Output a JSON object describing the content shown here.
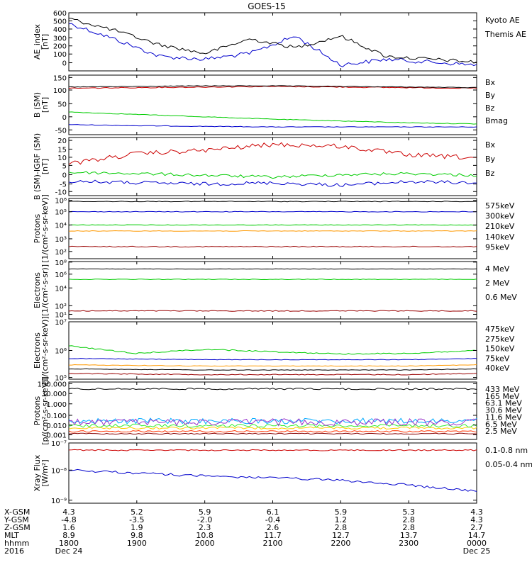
{
  "title": "GOES-15",
  "colors": {
    "black": "#000000",
    "blue": "#0000cc",
    "green": "#00dd00",
    "red": "#cc0000",
    "darkred": "#990000",
    "orange": "#ff9900",
    "yellow": "#ffcc00",
    "lightgreen": "#33ee33",
    "cyan": "#00aaff",
    "purple": "#9933cc",
    "maroon": "#880000"
  },
  "panels": [
    {
      "id": "ae",
      "ylabel": [
        "AE_index",
        "[nT]"
      ],
      "ticks": [
        "600",
        "500",
        "400",
        "300",
        "200",
        "100",
        "0"
      ],
      "legend": [
        {
          "text": "Kyoto AE",
          "color": "#0000cc"
        },
        {
          "text": "Themis AE",
          "color": "#000000"
        }
      ]
    },
    {
      "id": "bsm",
      "ylabel": [
        "B (SM)",
        "[nT]"
      ],
      "ticks": [
        "150",
        "100",
        "50",
        "0",
        "-50"
      ],
      "legend": [
        {
          "text": "Bx",
          "color": "#0000cc"
        },
        {
          "text": "By",
          "color": "#00cc00"
        },
        {
          "text": "Bz",
          "color": "#cc0000"
        },
        {
          "text": "Bmag",
          "color": "#000000"
        }
      ]
    },
    {
      "id": "bigrf",
      "ylabel": [
        "B (SM)-IGRF (SM)",
        "[nT]"
      ],
      "ticks": [
        "20",
        "15",
        "10",
        "5",
        "0",
        "-5",
        "-10"
      ],
      "legend": [
        {
          "text": "Bx",
          "color": "#0000cc"
        },
        {
          "text": "By",
          "color": "#00cc00"
        },
        {
          "text": "Bz",
          "color": "#cc0000"
        }
      ]
    },
    {
      "id": "protons1",
      "ylabel": [
        "Protons",
        "[1/(cm²-s-sr-keV)]"
      ],
      "ticks": [
        "10⁶",
        "10⁵",
        "10⁴",
        "10³",
        "10²"
      ],
      "legend": [
        {
          "text": "575keV",
          "color": "#990000"
        },
        {
          "text": "300keV",
          "color": "#ff9900"
        },
        {
          "text": "210keV",
          "color": "#00cc00"
        },
        {
          "text": "140keV",
          "color": "#0000cc"
        },
        {
          "text": "95keV",
          "color": "#000000"
        }
      ]
    },
    {
      "id": "electrons1",
      "ylabel": [
        "Electrons",
        "[1/(cm²-s-sr)]"
      ],
      "ticks": [
        "10⁸",
        "10⁶",
        "10⁴",
        "10²",
        "10¹"
      ],
      "legend": [
        {
          "text": "4 MeV",
          "color": "#990000"
        },
        {
          "text": "2 MeV",
          "color": "#00cc00"
        },
        {
          "text": "0.6 MeV",
          "color": "#000000"
        }
      ]
    },
    {
      "id": "electrons2",
      "ylabel": [
        "Electrons",
        "[1/(cm²-s-sr-keV)]"
      ],
      "ticks": [
        "10⁷",
        "10⁶",
        "10⁵"
      ],
      "legend": [
        {
          "text": "475keV",
          "color": "#990000"
        },
        {
          "text": "275keV",
          "color": "#ff9900"
        },
        {
          "text": "150keV",
          "color": "#00cc00"
        },
        {
          "text": "75keV",
          "color": "#0000cc"
        },
        {
          "text": "40keV",
          "color": "#000000"
        }
      ]
    },
    {
      "id": "protons2",
      "ylabel": [
        "Protons",
        "[p/(cm²-s-sr-keV)]"
      ],
      "ticks": [
        "100.000",
        "10.000",
        "1.000",
        "0.100",
        "0.010",
        "0.001"
      ],
      "legend": [
        {
          "text": "433 MeV",
          "color": "#880000"
        },
        {
          "text": "165 MeV",
          "color": "#ff3300"
        },
        {
          "text": "63.1 MeV",
          "color": "#ffcc00"
        },
        {
          "text": "30.6 MeV",
          "color": "#33ee33"
        },
        {
          "text": "11.6 MeV",
          "color": "#00aaff"
        },
        {
          "text": "6.5 MeV",
          "color": "#9933cc"
        },
        {
          "text": "2.5 MeV",
          "color": "#000000"
        }
      ]
    },
    {
      "id": "xray",
      "ylabel": [
        "Xray Flux",
        "[W/m²]"
      ],
      "ticks": [
        "10⁻⁷",
        "10⁻⁸",
        "10⁻⁹"
      ],
      "legend": [
        {
          "text": "0.1-0.8 nm",
          "color": "#cc0000"
        },
        {
          "text": "0.05-0.4 nm",
          "color": "#0000cc"
        }
      ]
    }
  ],
  "footer": {
    "labels": [
      "X-GSM",
      "Y-GSM",
      "Z-GSM",
      "MLT",
      "hhmm",
      "2016"
    ],
    "columns": [
      [
        "4.3",
        "-4.8",
        "1.6",
        "8.9",
        "1800",
        "Dec 24"
      ],
      [
        "5.2",
        "-3.5",
        "1.9",
        "9.8",
        "1900",
        ""
      ],
      [
        "5.9",
        "-2.0",
        "2.3",
        "10.8",
        "2000",
        ""
      ],
      [
        "6.1",
        "-0.4",
        "2.6",
        "11.7",
        "2100",
        ""
      ],
      [
        "5.9",
        "1.2",
        "2.8",
        "12.7",
        "2200",
        ""
      ],
      [
        "5.3",
        "2.8",
        "2.8",
        "13.7",
        "2300",
        ""
      ],
      [
        "4.3",
        "4.3",
        "2.7",
        "14.7",
        "0000",
        "Dec 25"
      ]
    ]
  },
  "chart_data": [
    {
      "type": "line",
      "title": "GOES-15",
      "panel": "AE_index [nT]",
      "x": [
        "1800",
        "1900",
        "2000",
        "2100",
        "2200",
        "2300",
        "0000"
      ],
      "ylim": [
        0,
        600
      ],
      "series": [
        {
          "name": "Kyoto AE",
          "values": [
            520,
            200,
            100,
            150,
            320,
            120,
            80
          ]
        },
        {
          "name": "Themis AE",
          "values": [
            500,
            330,
            180,
            330,
            380,
            210,
            120
          ]
        }
      ]
    },
    {
      "type": "line",
      "panel": "B (SM) [nT]",
      "x": [
        "1800",
        "1900",
        "2000",
        "2100",
        "2200",
        "2300",
        "0000"
      ],
      "ylim": [
        -50,
        150
      ],
      "series": [
        {
          "name": "Bx",
          "values": [
            -25,
            -27,
            -28,
            -30,
            -30,
            -30,
            -30
          ]
        },
        {
          "name": "By",
          "values": [
            18,
            12,
            6,
            0,
            -5,
            -12,
            -18
          ]
        },
        {
          "name": "Bz",
          "values": [
            115,
            117,
            120,
            122,
            120,
            118,
            116
          ]
        },
        {
          "name": "Bmag",
          "values": [
            118,
            120,
            121,
            123,
            121,
            119,
            118
          ]
        }
      ]
    },
    {
      "type": "line",
      "panel": "B (SM)-IGRF (SM) [nT]",
      "x": [
        "1800",
        "1900",
        "2000",
        "2100",
        "2200",
        "2300",
        "0000"
      ],
      "ylim": [
        -10,
        20
      ],
      "series": [
        {
          "name": "Bx",
          "values": [
            -3,
            -3,
            -4,
            -4,
            -4,
            -3,
            -3
          ]
        },
        {
          "name": "By",
          "values": [
            1,
            1,
            0,
            -1,
            0,
            1,
            1
          ]
        },
        {
          "name": "Bz",
          "values": [
            8,
            13,
            15,
            17,
            15,
            11,
            12
          ]
        }
      ]
    },
    {
      "type": "line",
      "panel": "Protons [1/(cm2-s-sr-keV)]",
      "yscale": "log",
      "x": [
        "1800",
        "1900",
        "2000",
        "2100",
        "2200",
        "2300",
        "0000"
      ],
      "ylim": [
        100,
        1000000
      ],
      "series": [
        {
          "name": "575keV",
          "values": [
            600,
            600,
            600,
            600,
            600,
            600,
            600
          ]
        },
        {
          "name": "300keV",
          "values": [
            6000,
            6000,
            6000,
            6000,
            6000,
            6000,
            6000
          ]
        },
        {
          "name": "210keV",
          "values": [
            20000,
            20000,
            20000,
            20000,
            20000,
            20000,
            20000
          ]
        },
        {
          "name": "140keV",
          "values": [
            150000,
            150000,
            150000,
            150000,
            150000,
            150000,
            150000
          ]
        },
        {
          "name": "95keV",
          "values": [
            900000,
            900000,
            900000,
            900000,
            900000,
            900000,
            900000
          ]
        }
      ]
    },
    {
      "type": "line",
      "panel": "Electrons [1/(cm2-s-sr)]",
      "yscale": "log",
      "x": [
        "1800",
        "1900",
        "2000",
        "2100",
        "2200",
        "2300",
        "0000"
      ],
      "ylim": [
        10,
        100000000
      ],
      "series": [
        {
          "name": "4 MeV",
          "values": [
            30,
            30,
            30,
            30,
            30,
            30,
            30
          ]
        },
        {
          "name": "2 MeV",
          "values": [
            30000,
            30000,
            30000,
            30000,
            30000,
            30000,
            30000
          ]
        },
        {
          "name": "0.6 MeV",
          "values": [
            1000000,
            1000000,
            1000000,
            1000000,
            1000000,
            1000000,
            1000000
          ]
        }
      ]
    },
    {
      "type": "line",
      "panel": "Electrons [1/(cm2-s-sr-keV)]",
      "yscale": "log",
      "x": [
        "1800",
        "1900",
        "2000",
        "2100",
        "2200",
        "2300",
        "0000"
      ],
      "ylim": [
        100000,
        10000000
      ],
      "series": [
        {
          "name": "475keV",
          "values": [
            180000,
            175000,
            170000,
            170000,
            170000,
            170000,
            180000
          ]
        },
        {
          "name": "275keV",
          "values": [
            380000,
            370000,
            360000,
            360000,
            360000,
            360000,
            380000
          ]
        },
        {
          "name": "150keV",
          "values": [
            1500000,
            1100000,
            1050000,
            1050000,
            1000000,
            1000000,
            1050000
          ]
        },
        {
          "name": "75keV",
          "values": [
            600000,
            580000,
            560000,
            560000,
            560000,
            560000,
            580000
          ]
        },
        {
          "name": "40keV",
          "values": [
            300000,
            290000,
            280000,
            280000,
            280000,
            280000,
            290000
          ]
        }
      ]
    },
    {
      "type": "line",
      "panel": "Protons [p/(cm2-s-sr-keV)]",
      "yscale": "log",
      "x": [
        "1800",
        "1900",
        "2000",
        "2100",
        "2200",
        "2300",
        "0000"
      ],
      "ylim": [
        0.001,
        100
      ],
      "series": [
        {
          "name": "433 MeV",
          "values": [
            0.004,
            0.004,
            0.004,
            0.004,
            0.004,
            0.004,
            0.004
          ]
        },
        {
          "name": "165 MeV",
          "values": [
            0.006,
            0.006,
            0.006,
            0.006,
            0.006,
            0.006,
            0.006
          ]
        },
        {
          "name": "63.1 MeV",
          "values": [
            0.015,
            0.015,
            0.015,
            0.015,
            0.015,
            0.015,
            0.015
          ]
        },
        {
          "name": "30.6 MeV",
          "values": [
            0.03,
            0.03,
            0.03,
            0.03,
            0.03,
            0.03,
            0.03
          ]
        },
        {
          "name": "11.6 MeV",
          "values": [
            0.08,
            0.08,
            0.08,
            0.08,
            0.08,
            0.08,
            0.08
          ]
        },
        {
          "name": "6.5 MeV",
          "values": [
            0.1,
            0.1,
            0.1,
            0.1,
            0.1,
            0.1,
            0.1
          ]
        },
        {
          "name": "2.5 MeV",
          "values": [
            40,
            40,
            40,
            40,
            40,
            40,
            40
          ]
        }
      ]
    },
    {
      "type": "line",
      "panel": "Xray Flux [W/m2]",
      "yscale": "log",
      "x": [
        "1800",
        "1900",
        "2000",
        "2100",
        "2200",
        "2300",
        "0000"
      ],
      "ylim": [
        1e-09,
        1e-07
      ],
      "series": [
        {
          "name": "0.1-0.8 nm",
          "values": [
            7e-08,
            7e-08,
            7e-08,
            7e-08,
            7e-08,
            7e-08,
            7e-08
          ]
        },
        {
          "name": "0.05-0.4 nm",
          "values": [
            1.5e-08,
            1.3e-08,
            1.2e-08,
            1.1e-08,
            1e-08,
            8e-09,
            5e-09
          ]
        }
      ]
    }
  ]
}
